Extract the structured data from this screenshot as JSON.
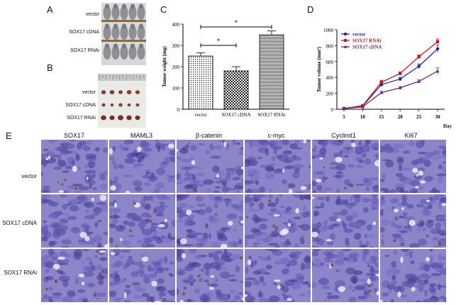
{
  "panels": {
    "A": "A",
    "B": "B",
    "C": "C",
    "D": "D",
    "E": "E"
  },
  "mice_labels": [
    "vector",
    "SOX17 cDNA",
    "SOX17 RNAi"
  ],
  "tumor_labels": [
    "vector",
    "SOX17 cDNA",
    "SOX17 RNAi"
  ],
  "colors": {
    "vector": "#1f2aa8",
    "rnai": "#c8161d",
    "cdna": "#6a2a7a",
    "tissue_base": "#8c86c9",
    "mouse_fur": "#9a9aa0"
  },
  "chart_data": [
    {
      "type": "bar",
      "panel": "C",
      "categories": [
        "vector",
        "SOX17 cDNA",
        "SOX17 RNAi"
      ],
      "values": [
        250,
        180,
        350
      ],
      "errors": [
        15,
        20,
        18
      ],
      "patterns": [
        "dots",
        "checker",
        "hlines"
      ],
      "ylabel": "Tumor weight (mg)",
      "ylim": [
        0,
        400
      ],
      "yticks": [
        0,
        100,
        200,
        300,
        400
      ],
      "significance": [
        {
          "from": 0,
          "to": 1,
          "label": "*"
        },
        {
          "from": 0,
          "to": 2,
          "label": "*"
        }
      ]
    },
    {
      "type": "line",
      "panel": "D",
      "x": [
        5,
        10,
        15,
        20,
        25,
        30
      ],
      "xlabel": "Day",
      "ylabel": "Tumor volume (mm³)",
      "ylim": [
        0,
        1000
      ],
      "yticks": [
        0,
        200,
        400,
        600,
        800,
        1000
      ],
      "series": [
        {
          "name": "vector",
          "marker": "circle",
          "values": [
            10,
            40,
            310,
            380,
            540,
            760
          ],
          "errors": [
            5,
            8,
            25,
            20,
            30,
            45
          ]
        },
        {
          "name": "SOX17 RNAi",
          "marker": "square",
          "values": [
            10,
            45,
            340,
            450,
            660,
            850
          ],
          "errors": [
            5,
            8,
            25,
            20,
            25,
            35
          ]
        },
        {
          "name": "SOX17 cDNA",
          "marker": "triangle",
          "values": [
            8,
            30,
            210,
            270,
            350,
            480
          ],
          "errors": [
            4,
            6,
            15,
            15,
            20,
            40
          ]
        }
      ]
    }
  ],
  "histology": {
    "columns": [
      "SOX17",
      "MAML3",
      "β-catenin",
      "c-myc",
      "Cyclind1",
      "Ki67"
    ],
    "rows": [
      "vector",
      "SOX17 cDNA",
      "SOX17 RNAi"
    ]
  }
}
